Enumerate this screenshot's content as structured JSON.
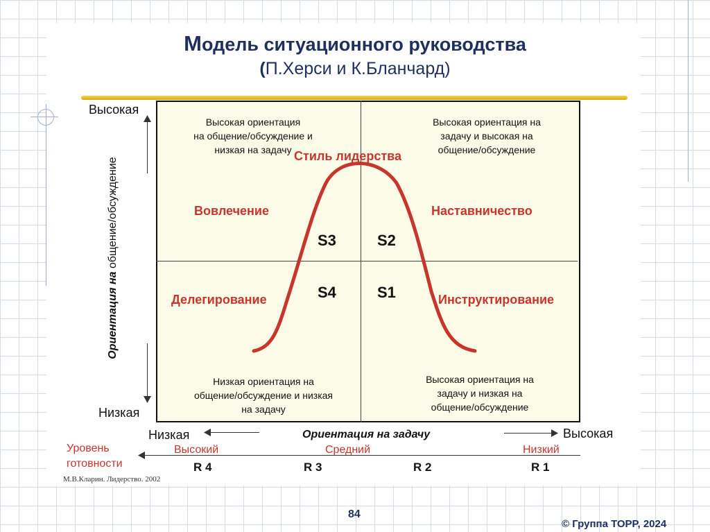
{
  "title": {
    "first_letter": "М",
    "rest": "одель ситуационного руководства",
    "paren_open": "(",
    "subtitle": "П.Херси и К.Бланчард)"
  },
  "y_axis": {
    "high": "Высокая",
    "low": "Низкая",
    "label_bold": "Ориентация на",
    "label_plain": "общение/обсуждение"
  },
  "x_axis": {
    "low": "Низкая",
    "high": "Высокая",
    "label": "Ориентация на задачу"
  },
  "quadrants": {
    "top_left": {
      "line1": "Высокая ориентация",
      "line2": "на общение/обсуждение и",
      "line3": "низкая на задачу",
      "style": "Вовлечение",
      "code": "S3"
    },
    "top_right": {
      "line1": "Высокая ориентация на",
      "line2": "задачу и высокая на",
      "line3": "общение/обсуждение",
      "style": "Наставничество",
      "code": "S2"
    },
    "bottom_left": {
      "line1": "Низкая ориентация на",
      "line2": "общение/обсуждение и низкая",
      "line3": "на задачу",
      "style": "Делегирование",
      "code": "S4"
    },
    "bottom_right": {
      "line1": "Высокая ориентация на",
      "line2": "задачу и низкая на",
      "line3": "общение/обсуждение",
      "style": "Инструктирование",
      "code": "S1"
    }
  },
  "curve_label": "Стиль лидерства",
  "readiness": {
    "label_line1": "Уровень",
    "label_line2": "готовности",
    "levels": [
      "Высокий",
      "Средний",
      "Низкий"
    ],
    "r_codes": [
      "R 4",
      "R 3",
      "R 2",
      "R 1"
    ]
  },
  "credit": "М.В.Кларин. Лидерство. 2002",
  "page_number": "84",
  "copyright": "© Группа ТОРР, 2024",
  "colors": {
    "accent_red": "#c6362d",
    "title_blue": "#1f2f5e",
    "quad_bg": "#fcfbe8",
    "gold": "#e3bb2a"
  }
}
